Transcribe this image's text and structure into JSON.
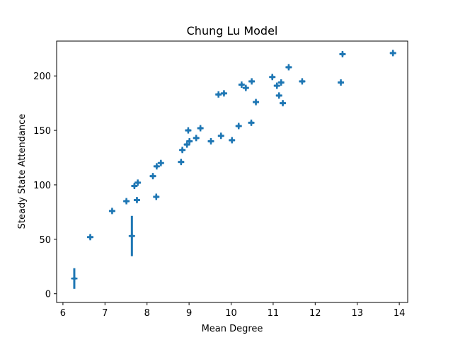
{
  "chart_data": {
    "type": "scatter",
    "title": "Chung Lu Model",
    "xlabel": "Mean Degree",
    "ylabel": "Steady State Attendance",
    "xlim": [
      5.85,
      14.2
    ],
    "ylim": [
      -8,
      232
    ],
    "xticks": [
      6,
      7,
      8,
      9,
      10,
      11,
      12,
      13,
      14
    ],
    "yticks": [
      0,
      50,
      100,
      150,
      200
    ],
    "grid": false,
    "marker_color": "#1f77b4",
    "points": [
      {
        "x": 6.27,
        "y": 14,
        "yerr": 9.5,
        "xerr": 0.04
      },
      {
        "x": 6.65,
        "y": 52,
        "yerr": 1.5,
        "xerr": 0.07
      },
      {
        "x": 7.17,
        "y": 76,
        "yerr": 1.5,
        "xerr": 0.07
      },
      {
        "x": 7.51,
        "y": 85,
        "yerr": 1.5,
        "xerr": 0.07
      },
      {
        "x": 7.64,
        "y": 53,
        "yerr": 18.5,
        "xerr": 0.05
      },
      {
        "x": 7.7,
        "y": 99,
        "yerr": 1.5,
        "xerr": 0.07
      },
      {
        "x": 7.76,
        "y": 86,
        "yerr": 1.5,
        "xerr": 0.07
      },
      {
        "x": 7.78,
        "y": 102,
        "yerr": 1.5,
        "xerr": 0.07
      },
      {
        "x": 8.14,
        "y": 108,
        "yerr": 1.5,
        "xerr": 0.07
      },
      {
        "x": 8.22,
        "y": 89,
        "yerr": 1.5,
        "xerr": 0.07
      },
      {
        "x": 8.23,
        "y": 117,
        "yerr": 1.5,
        "xerr": 0.07
      },
      {
        "x": 8.33,
        "y": 120,
        "yerr": 1.5,
        "xerr": 0.07
      },
      {
        "x": 8.81,
        "y": 121,
        "yerr": 1.5,
        "xerr": 0.07
      },
      {
        "x": 8.84,
        "y": 132,
        "yerr": 1.5,
        "xerr": 0.07
      },
      {
        "x": 8.95,
        "y": 137,
        "yerr": 1.5,
        "xerr": 0.07
      },
      {
        "x": 8.98,
        "y": 150,
        "yerr": 1.5,
        "xerr": 0.07
      },
      {
        "x": 9.01,
        "y": 140,
        "yerr": 1.5,
        "xerr": 0.07
      },
      {
        "x": 9.17,
        "y": 143,
        "yerr": 1.5,
        "xerr": 0.07
      },
      {
        "x": 9.27,
        "y": 152,
        "yerr": 1.5,
        "xerr": 0.07
      },
      {
        "x": 9.52,
        "y": 140,
        "yerr": 1.5,
        "xerr": 0.07
      },
      {
        "x": 9.7,
        "y": 183,
        "yerr": 1.5,
        "xerr": 0.07
      },
      {
        "x": 9.76,
        "y": 145,
        "yerr": 1.5,
        "xerr": 0.07
      },
      {
        "x": 9.83,
        "y": 184,
        "yerr": 1.5,
        "xerr": 0.07
      },
      {
        "x": 10.02,
        "y": 141,
        "yerr": 1.5,
        "xerr": 0.07
      },
      {
        "x": 10.18,
        "y": 154,
        "yerr": 1.5,
        "xerr": 0.07
      },
      {
        "x": 10.25,
        "y": 192,
        "yerr": 1.5,
        "xerr": 0.07
      },
      {
        "x": 10.35,
        "y": 189,
        "yerr": 1.5,
        "xerr": 0.07
      },
      {
        "x": 10.48,
        "y": 157,
        "yerr": 1.5,
        "xerr": 0.07
      },
      {
        "x": 10.49,
        "y": 195,
        "yerr": 1.5,
        "xerr": 0.07
      },
      {
        "x": 10.59,
        "y": 176,
        "yerr": 1.5,
        "xerr": 0.07
      },
      {
        "x": 10.98,
        "y": 199,
        "yerr": 1.5,
        "xerr": 0.07
      },
      {
        "x": 11.09,
        "y": 191,
        "yerr": 1.5,
        "xerr": 0.07
      },
      {
        "x": 11.14,
        "y": 182,
        "yerr": 1.5,
        "xerr": 0.07
      },
      {
        "x": 11.19,
        "y": 194,
        "yerr": 1.5,
        "xerr": 0.07
      },
      {
        "x": 11.23,
        "y": 175,
        "yerr": 1.5,
        "xerr": 0.07
      },
      {
        "x": 11.37,
        "y": 208,
        "yerr": 1.5,
        "xerr": 0.07
      },
      {
        "x": 11.69,
        "y": 195,
        "yerr": 1.5,
        "xerr": 0.07
      },
      {
        "x": 12.61,
        "y": 194,
        "yerr": 1.5,
        "xerr": 0.07
      },
      {
        "x": 12.65,
        "y": 220,
        "yerr": 1.5,
        "xerr": 0.07
      },
      {
        "x": 13.85,
        "y": 221,
        "yerr": 1.5,
        "xerr": 0.07
      }
    ]
  }
}
